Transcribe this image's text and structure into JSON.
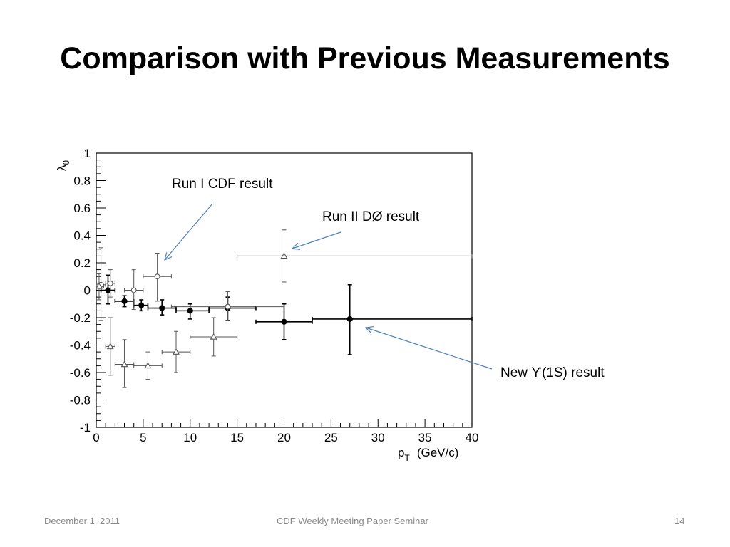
{
  "slide": {
    "title": "Comparison with Previous Measurements",
    "footer": {
      "date": "December 1, 2011",
      "center": "CDF Weekly Meeting Paper Seminar",
      "page": "14"
    },
    "annotations": {
      "run1": "Run I CDF result",
      "run2": "Run II DØ result",
      "new": "New ϒ(1S) result"
    }
  },
  "chart_data": {
    "type": "scatter",
    "title": "",
    "xlabel": "p",
    "xlabel_sub": "T",
    "xlabel_unit": "(GeV/c)",
    "ylabel": "λ",
    "ylabel_sub": "θ",
    "xlim": [
      0,
      40
    ],
    "ylim": [
      -1,
      1
    ],
    "xticks": [
      "0",
      "5",
      "10",
      "15",
      "20",
      "25",
      "30",
      "35",
      "40"
    ],
    "yticks": [
      "-1",
      "-0.8",
      "-0.6",
      "-0.4",
      "-0.2",
      "0",
      "0.2",
      "0.4",
      "0.6",
      "0.8",
      "1"
    ],
    "grid": false,
    "colors": {
      "axes": "#000000",
      "series_gray": "#555555",
      "arrow": "#4f81bd"
    },
    "series": [
      {
        "marker": "filled-circle",
        "points": [
          {
            "x": 1.25,
            "xlo": 0.5,
            "xhi": 2.0,
            "y": 0.0,
            "ylo": -0.1,
            "yhi": 0.11
          },
          {
            "x": 3.0,
            "xlo": 2.0,
            "xhi": 4.0,
            "y": -0.08,
            "ylo": -0.12,
            "yhi": -0.04
          },
          {
            "x": 4.8,
            "xlo": 4.0,
            "xhi": 5.5,
            "y": -0.11,
            "ylo": -0.15,
            "yhi": -0.07
          },
          {
            "x": 7.0,
            "xlo": 5.5,
            "xhi": 8.5,
            "y": -0.13,
            "ylo": -0.18,
            "yhi": -0.07
          },
          {
            "x": 10.0,
            "xlo": 8.5,
            "xhi": 12.0,
            "y": -0.15,
            "ylo": -0.21,
            "yhi": -0.1
          },
          {
            "x": 14.0,
            "xlo": 12.0,
            "xhi": 17.0,
            "y": -0.13,
            "ylo": -0.22,
            "yhi": -0.05
          },
          {
            "x": 20.0,
            "xlo": 17.0,
            "xhi": 23.0,
            "y": -0.23,
            "ylo": -0.36,
            "yhi": -0.1
          },
          {
            "x": 27.0,
            "xlo": 23.0,
            "xhi": 40.0,
            "y": -0.21,
            "ylo": -0.47,
            "yhi": 0.04
          }
        ]
      },
      {
        "marker": "open-circle",
        "points": [
          {
            "x": 0.5,
            "xlo": 0.0,
            "xhi": 1.0,
            "y": 0.04,
            "ylo": -0.22,
            "yhi": 0.31
          },
          {
            "x": 1.5,
            "xlo": 1.0,
            "xhi": 2.0,
            "y": 0.05,
            "ylo": -0.05,
            "yhi": 0.15
          },
          {
            "x": 4.0,
            "xlo": 3.0,
            "xhi": 5.0,
            "y": 0.0,
            "ylo": -0.14,
            "yhi": 0.15
          },
          {
            "x": 6.5,
            "xlo": 5.0,
            "xhi": 8.0,
            "y": 0.1,
            "ylo": -0.08,
            "yhi": 0.27
          },
          {
            "x": 14.0,
            "xlo": 8.0,
            "xhi": 20.0,
            "y": -0.12,
            "ylo": -0.22,
            "yhi": -0.01
          }
        ]
      },
      {
        "marker": "open-triangle",
        "points": [
          {
            "x": 0.3,
            "xlo": 0.0,
            "xhi": 0.8,
            "y": 0.03,
            "ylo": -0.07,
            "yhi": 0.12
          },
          {
            "x": 1.5,
            "xlo": 1.0,
            "xhi": 2.0,
            "y": -0.41,
            "ylo": -0.62,
            "yhi": -0.2
          },
          {
            "x": 3.0,
            "xlo": 2.0,
            "xhi": 4.0,
            "y": -0.54,
            "ylo": -0.71,
            "yhi": -0.36
          },
          {
            "x": 5.5,
            "xlo": 4.0,
            "xhi": 7.0,
            "y": -0.55,
            "ylo": -0.65,
            "yhi": -0.45
          },
          {
            "x": 8.5,
            "xlo": 7.0,
            "xhi": 10.0,
            "y": -0.45,
            "ylo": -0.6,
            "yhi": -0.3
          },
          {
            "x": 12.5,
            "xlo": 10.0,
            "xhi": 15.0,
            "y": -0.34,
            "ylo": -0.48,
            "yhi": -0.2
          },
          {
            "x": 20.0,
            "xlo": 15.0,
            "xhi": 40.0,
            "y": 0.25,
            "ylo": 0.06,
            "yhi": 0.44
          }
        ]
      }
    ]
  }
}
